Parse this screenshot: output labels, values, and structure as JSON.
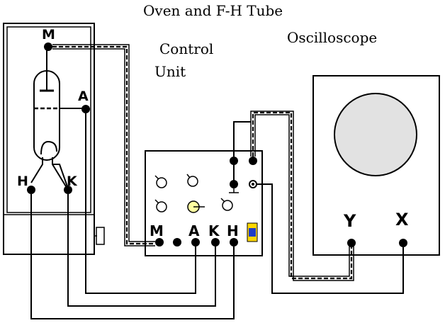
{
  "title": "Oven and F-H Tube",
  "control_unit": {
    "label_line1": "Control",
    "label_line2": "Unit",
    "terminals": {
      "m": "M",
      "a": "A",
      "k": "K",
      "h": "H"
    }
  },
  "oscilloscope": {
    "label": "Oscilloscope",
    "terminals": {
      "y": "Y",
      "x": "X"
    }
  },
  "oven": {
    "terminals": {
      "m": "M",
      "a": "A",
      "h": "H",
      "k": "K"
    }
  },
  "colors": {
    "line": "#000000",
    "screen": "#e2e2e2",
    "knob_active": "#ffffa0",
    "indicator_fill": "#1e3cc8",
    "indicator_border": "#ffd700"
  }
}
